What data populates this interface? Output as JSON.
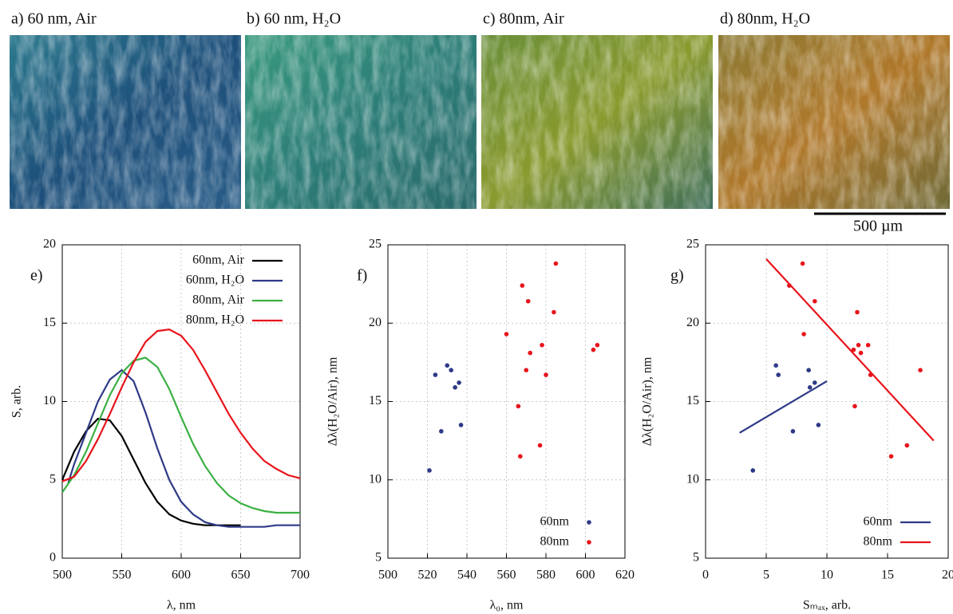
{
  "images": {
    "panels": [
      "a) 60 nm, Air",
      "b) 60 nm, H₂O",
      "c) 80nm, Air",
      "d) 80nm, H₂O"
    ],
    "scale_bar": "500 µm"
  },
  "chart_data": [
    {
      "type": "line",
      "label": "e)",
      "xlabel": "λ, nm",
      "ylabel": "S, arb.",
      "xlim": [
        500,
        700
      ],
      "xticks": [
        500,
        550,
        600,
        650,
        700
      ],
      "ylim": [
        0,
        20
      ],
      "yticks": [
        0,
        5,
        10,
        15,
        20
      ],
      "grid": true,
      "legend": "upper right",
      "legend_marker": "line",
      "series": [
        {
          "name": "60nm, Air",
          "color": "#000000",
          "x": [
            500,
            510,
            520,
            530,
            540,
            550,
            560,
            570,
            580,
            590,
            600,
            610,
            620,
            630,
            640,
            650
          ],
          "values": [
            5,
            6.8,
            8.1,
            8.9,
            8.8,
            7.8,
            6.3,
            4.8,
            3.6,
            2.8,
            2.4,
            2.2,
            2.1,
            2.1,
            2.1,
            2.1
          ]
        },
        {
          "name": "60nm, H₂O",
          "color": "#2e3a87",
          "x": [
            505,
            510,
            520,
            530,
            540,
            550,
            560,
            570,
            580,
            590,
            600,
            610,
            620,
            630,
            640,
            650,
            660,
            670,
            680,
            690,
            700
          ],
          "values": [
            4.8,
            6,
            8,
            10,
            11.4,
            12,
            11.3,
            9.3,
            7,
            5,
            3.6,
            2.8,
            2.3,
            2.1,
            2,
            2,
            2,
            2,
            2.1,
            2.1,
            2.1
          ]
        },
        {
          "name": "80nm, Air",
          "color": "#3cb043",
          "x": [
            500,
            510,
            520,
            530,
            540,
            550,
            560,
            570,
            580,
            590,
            600,
            610,
            620,
            630,
            640,
            650,
            660,
            670,
            680,
            690,
            700
          ],
          "values": [
            4.2,
            5.3,
            6.8,
            8.6,
            10.4,
            11.8,
            12.6,
            12.8,
            12.2,
            10.8,
            9,
            7.3,
            5.9,
            4.8,
            4,
            3.5,
            3.2,
            3,
            2.9,
            2.9,
            2.9
          ]
        },
        {
          "name": "80nm, H₂O",
          "color": "#e8141b",
          "x": [
            500,
            510,
            520,
            530,
            540,
            550,
            560,
            570,
            580,
            590,
            600,
            610,
            620,
            630,
            640,
            650,
            660,
            670,
            680,
            690,
            700
          ],
          "values": [
            4.9,
            5.2,
            6.2,
            7.6,
            9.2,
            10.9,
            12.5,
            13.8,
            14.5,
            14.6,
            14.2,
            13.3,
            12,
            10.6,
            9.2,
            8,
            7,
            6.2,
            5.7,
            5.3,
            5.1
          ]
        }
      ]
    },
    {
      "type": "scatter",
      "label": "f)",
      "xlabel": "λ₀, nm",
      "ylabel": "Δλ(H₂O/Air), nm",
      "xlim": [
        500,
        620
      ],
      "xticks": [
        500,
        520,
        540,
        560,
        580,
        600,
        620
      ],
      "ylim": [
        5,
        25
      ],
      "yticks": [
        5,
        10,
        15,
        20,
        25
      ],
      "grid": true,
      "legend": "lower right",
      "legend_marker": "point",
      "series": [
        {
          "name": "60nm",
          "color": "#2e3a87",
          "x": [
            521,
            524,
            527,
            530,
            532,
            534,
            536,
            537
          ],
          "values": [
            10.6,
            16.7,
            13.1,
            17.3,
            17,
            15.9,
            16.2,
            13.5
          ]
        },
        {
          "name": "80nm",
          "color": "#e8141b",
          "x": [
            560,
            566,
            567,
            568,
            570,
            571,
            572,
            577,
            578,
            580,
            584,
            585,
            604,
            606
          ],
          "values": [
            19.3,
            14.7,
            11.5,
            22.4,
            17,
            21.4,
            18.1,
            12.2,
            18.6,
            16.7,
            20.7,
            23.8,
            18.3,
            18.6
          ]
        }
      ]
    },
    {
      "type": "scatter",
      "label": "g)",
      "xlabel": "Sₘₐₓ, arb.",
      "ylabel": "Δλ(H₂O/Air), nm",
      "xlim": [
        0,
        20
      ],
      "xticks": [
        0,
        5,
        10,
        15,
        20
      ],
      "ylim": [
        5,
        25
      ],
      "yticks": [
        5,
        10,
        15,
        20,
        25
      ],
      "grid": true,
      "legend": "lower right",
      "legend_marker": "line",
      "series": [
        {
          "name": "60nm",
          "color": "#2e3a87",
          "x": [
            3.9,
            5.8,
            6,
            7.2,
            8.5,
            8.6,
            9,
            9.3
          ],
          "values": [
            10.6,
            17.3,
            16.7,
            13.1,
            17,
            15.9,
            16.2,
            13.5
          ],
          "fit": {
            "x": [
              2.8,
              10
            ],
            "values": [
              13,
              16.3
            ]
          }
        },
        {
          "name": "80nm",
          "color": "#e8141b",
          "x": [
            6.9,
            8,
            8.1,
            9,
            12.2,
            12.3,
            12.5,
            12.6,
            12.8,
            13.4,
            13.6,
            15.3,
            16.6,
            17.7
          ],
          "values": [
            22.4,
            23.8,
            19.3,
            21.4,
            18.3,
            14.7,
            20.7,
            18.6,
            18.1,
            18.6,
            16.7,
            11.5,
            12.2,
            17
          ],
          "fit": {
            "x": [
              5,
              18.8
            ],
            "values": [
              24.1,
              12.5
            ]
          }
        }
      ]
    }
  ]
}
